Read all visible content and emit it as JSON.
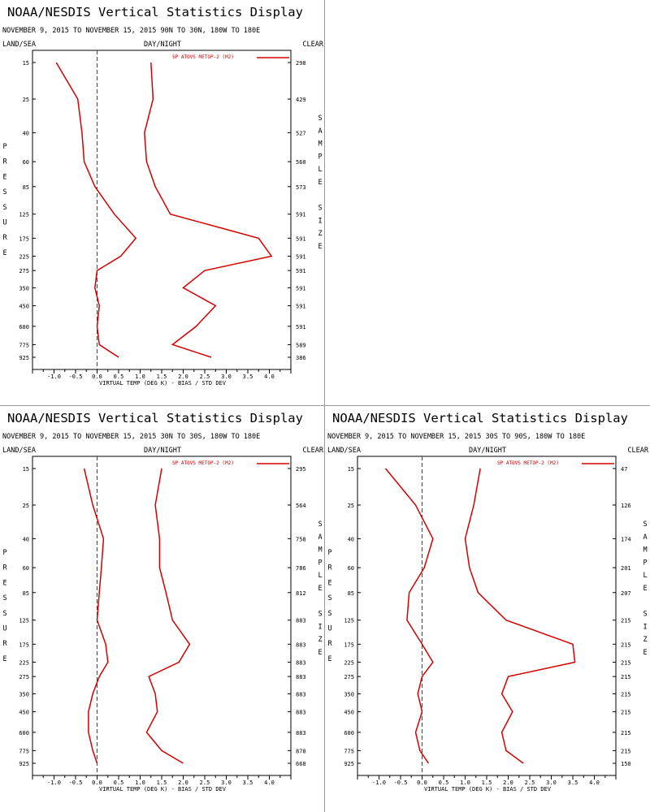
{
  "common": {
    "title": "NOAA/NESDIS Vertical Statistics Display",
    "land_sea": "LAND/SEA",
    "day_night": "DAY/NIGHT",
    "clear": "CLEAR",
    "ylabel": "PRESSURE",
    "right_label": "SAMPLE SIZE",
    "xlabel": "VIRTUAL TEMP (DEG K) - BIAS / STD DEV",
    "legend": "SP ATOVS METOP-2 (M2)",
    "line_color": "#d40000"
  },
  "chart_data": [
    {
      "type": "line",
      "subtitle": "NOVEMBER 9, 2015 TO NOVEMBER 15, 2015 90N TO 30N, 180W TO 180E",
      "pressure_levels": [
        15,
        25,
        40,
        60,
        85,
        125,
        175,
        225,
        275,
        350,
        450,
        600,
        775,
        925
      ],
      "x_ticks": [
        "-1.0",
        "-0.5",
        "0.0",
        "0.5",
        "1.0",
        "1.5",
        "2.0",
        "2.5",
        "3.0",
        "3.5",
        "4.0"
      ],
      "xlim": [
        -1.5,
        4.5
      ],
      "series": [
        {
          "name": "SP ATOVS METOP-2 (M2)",
          "kind": "bias",
          "values": [
            -0.95,
            -0.45,
            -0.35,
            -0.3,
            -0.05,
            0.4,
            0.9,
            0.55,
            0.0,
            -0.05,
            0.05,
            0.0,
            0.05,
            0.5
          ]
        },
        {
          "name": "SP ATOVS METOP-2 (M2)",
          "kind": "std_dev",
          "values": [
            1.25,
            1.3,
            1.1,
            1.15,
            1.35,
            1.7,
            3.75,
            4.05,
            2.5,
            2.0,
            2.75,
            2.3,
            1.75,
            2.65
          ]
        }
      ],
      "sample_size": [
        298,
        429,
        527,
        560,
        573,
        591,
        591,
        591,
        591,
        591,
        591,
        591,
        589,
        386
      ]
    },
    {
      "type": "line",
      "subtitle": "NOVEMBER 9, 2015 TO NOVEMBER 15, 2015 30N TO 30S, 180W TO 180E",
      "pressure_levels": [
        15,
        25,
        40,
        60,
        85,
        125,
        175,
        225,
        275,
        350,
        450,
        600,
        775,
        925
      ],
      "x_ticks": [
        "-1.0",
        "-0.5",
        "0.0",
        "0.5",
        "1.0",
        "1.5",
        "2.0",
        "2.5",
        "3.0",
        "3.5",
        "4.0"
      ],
      "xlim": [
        -1.5,
        4.5
      ],
      "series": [
        {
          "name": "SP ATOVS METOP-2 (M2)",
          "kind": "bias",
          "values": [
            -0.3,
            -0.1,
            0.15,
            0.1,
            0.05,
            0.0,
            0.2,
            0.25,
            0.05,
            -0.1,
            -0.2,
            -0.2,
            -0.1,
            0.0
          ]
        },
        {
          "name": "SP ATOVS METOP-2 (M2)",
          "kind": "std_dev",
          "values": [
            1.5,
            1.35,
            1.45,
            1.45,
            1.6,
            1.75,
            2.15,
            1.9,
            1.2,
            1.35,
            1.4,
            1.15,
            1.5,
            2.0
          ]
        }
      ],
      "sample_size": [
        295,
        564,
        758,
        786,
        812,
        883,
        883,
        883,
        883,
        883,
        883,
        883,
        878,
        668
      ]
    },
    {
      "type": "line",
      "subtitle": "NOVEMBER 9, 2015 TO NOVEMBER 15, 2015 30S TO 90S, 180W TO 180E",
      "pressure_levels": [
        15,
        25,
        40,
        60,
        85,
        125,
        175,
        225,
        275,
        350,
        450,
        600,
        775,
        925
      ],
      "x_ticks": [
        "-1.0",
        "-0.5",
        "0.0",
        "0.5",
        "1.0",
        "1.5",
        "2.0",
        "2.5",
        "3.0",
        "3.5",
        "4.0"
      ],
      "xlim": [
        -1.5,
        4.5
      ],
      "series": [
        {
          "name": "SP ATOVS METOP-2 (M2)",
          "kind": "bias",
          "values": [
            -0.85,
            -0.15,
            0.25,
            0.05,
            -0.3,
            -0.35,
            0.0,
            0.25,
            0.0,
            -0.1,
            0.0,
            -0.15,
            -0.05,
            0.15
          ]
        },
        {
          "name": "SP ATOVS METOP-2 (M2)",
          "kind": "std_dev",
          "values": [
            1.35,
            1.2,
            1.0,
            1.1,
            1.3,
            1.95,
            3.5,
            3.55,
            2.0,
            1.85,
            2.1,
            1.85,
            1.95,
            2.35
          ]
        }
      ],
      "sample_size": [
        47,
        126,
        174,
        201,
        207,
        215,
        215,
        215,
        215,
        215,
        215,
        215,
        215,
        150
      ]
    }
  ]
}
